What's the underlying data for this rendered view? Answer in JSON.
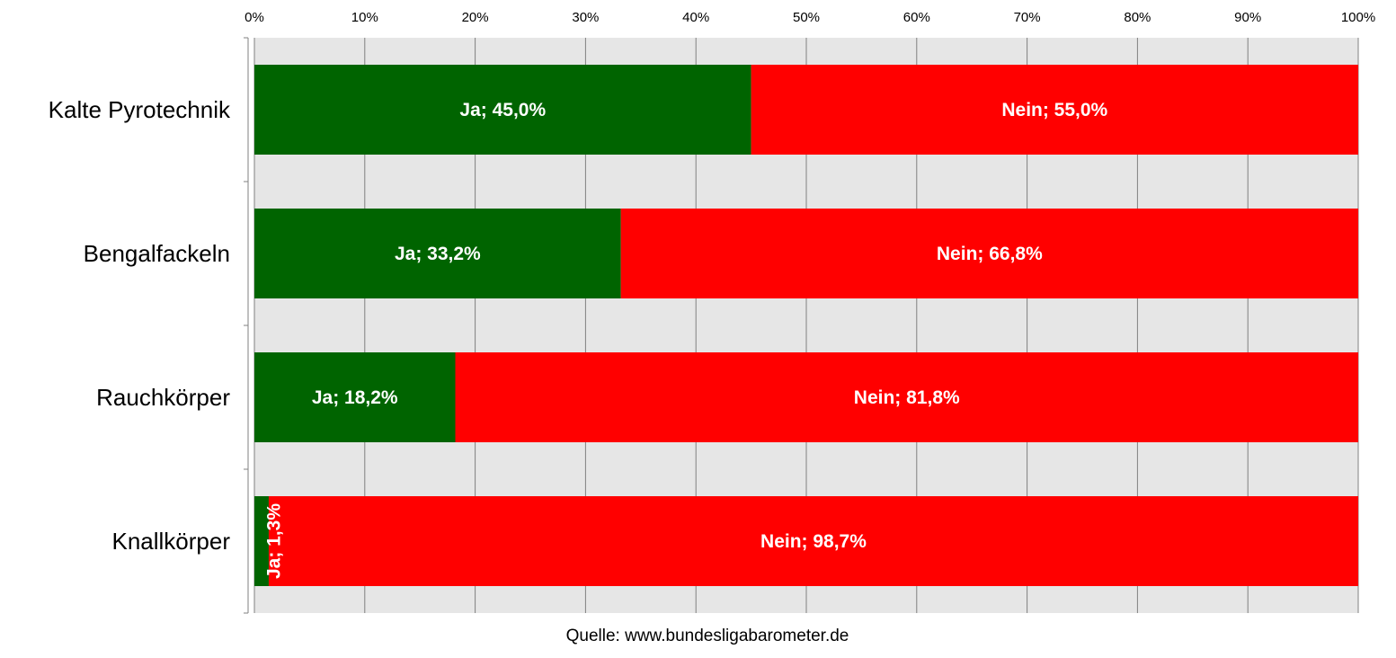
{
  "chart_data": {
    "type": "bar",
    "orientation": "horizontal",
    "stacked": true,
    "percent_stacked": true,
    "categories": [
      "Kalte Pyrotechnik",
      "Bengalfackeln",
      "Rauchkörper",
      "Knallkörper"
    ],
    "series": [
      {
        "name": "Ja",
        "color": "#006400",
        "values": [
          45.0,
          33.2,
          18.2,
          1.3
        ],
        "labels": [
          "Ja; 45,0%",
          "Ja; 33,2%",
          "Ja; 18,2%",
          "Ja; 1,3%"
        ]
      },
      {
        "name": "Nein",
        "color": "#ff0000",
        "values": [
          55.0,
          66.8,
          81.8,
          98.7
        ],
        "labels": [
          "Nein; 55,0%",
          "Nein; 66,8%",
          "Nein; 81,8%",
          "Nein; 98,7%"
        ]
      }
    ],
    "x_ticks": [
      "0%",
      "10%",
      "20%",
      "30%",
      "40%",
      "50%",
      "60%",
      "70%",
      "80%",
      "90%",
      "100%"
    ],
    "xlim": [
      0,
      100
    ],
    "x_axis_position": "top",
    "grid": true,
    "plot_background": "#e6e6e6",
    "gridline_color": "#808080",
    "legend": "none",
    "source": "Quelle: www.bundesligabarometer.de"
  }
}
